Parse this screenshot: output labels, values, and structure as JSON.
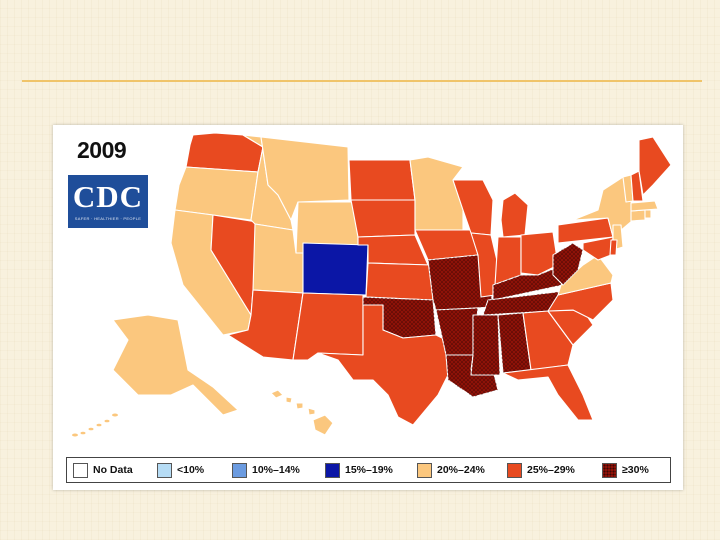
{
  "title": "2009",
  "logo": {
    "text": "CDC",
    "tagline": "SAFER · HEALTHIER · PEOPLE"
  },
  "colors": {
    "no_data": "#ffffff",
    "lt10": "#b6dcf5",
    "r10_14": "#6b9be0",
    "r15_19": "#0b16a6",
    "r20_24": "#fbc77e",
    "r25_29": "#e84a20",
    "ge30": "#8e1208"
  },
  "legend": [
    {
      "label": "No Data",
      "cat": "no_data"
    },
    {
      "label": "<10%",
      "cat": "lt10"
    },
    {
      "label": "10%–14%",
      "cat": "r10_14"
    },
    {
      "label": "15%–19%",
      "cat": "r15_19"
    },
    {
      "label": "20%–24%",
      "cat": "r20_24"
    },
    {
      "label": "25%–29%",
      "cat": "r25_29"
    },
    {
      "label": "≥30%",
      "cat": "ge30"
    }
  ],
  "states": {
    "WA": "r25_29",
    "OR": "r20_24",
    "CA": "r20_24",
    "NV": "r25_29",
    "ID": "r20_24",
    "MT": "r20_24",
    "WY": "r20_24",
    "UT": "r20_24",
    "AZ": "r25_29",
    "CO": "r15_19",
    "NM": "r25_29",
    "ND": "r25_29",
    "SD": "r25_29",
    "NE": "r25_29",
    "KS": "r25_29",
    "OK": "ge30",
    "TX": "r25_29",
    "MN": "r20_24",
    "IA": "r25_29",
    "MO": "ge30",
    "AR": "ge30",
    "LA": "ge30",
    "WI": "r25_29",
    "IL": "r25_29",
    "MI": "r25_29",
    "IN": "r25_29",
    "OH": "r25_29",
    "KY": "ge30",
    "TN": "ge30",
    "MS": "ge30",
    "AL": "ge30",
    "GA": "r25_29",
    "FL": "r25_29",
    "SC": "r25_29",
    "NC": "r25_29",
    "VA": "r20_24",
    "WV": "ge30",
    "PA": "r25_29",
    "NY": "r20_24",
    "NJ": "r20_24",
    "MD": "r25_29",
    "DE": "r25_29",
    "CT": "r20_24",
    "RI": "r20_24",
    "MA": "r20_24",
    "VT": "r20_24",
    "NH": "r25_29",
    "ME": "r25_29",
    "AK": "r20_24",
    "HI": "r20_24"
  }
}
